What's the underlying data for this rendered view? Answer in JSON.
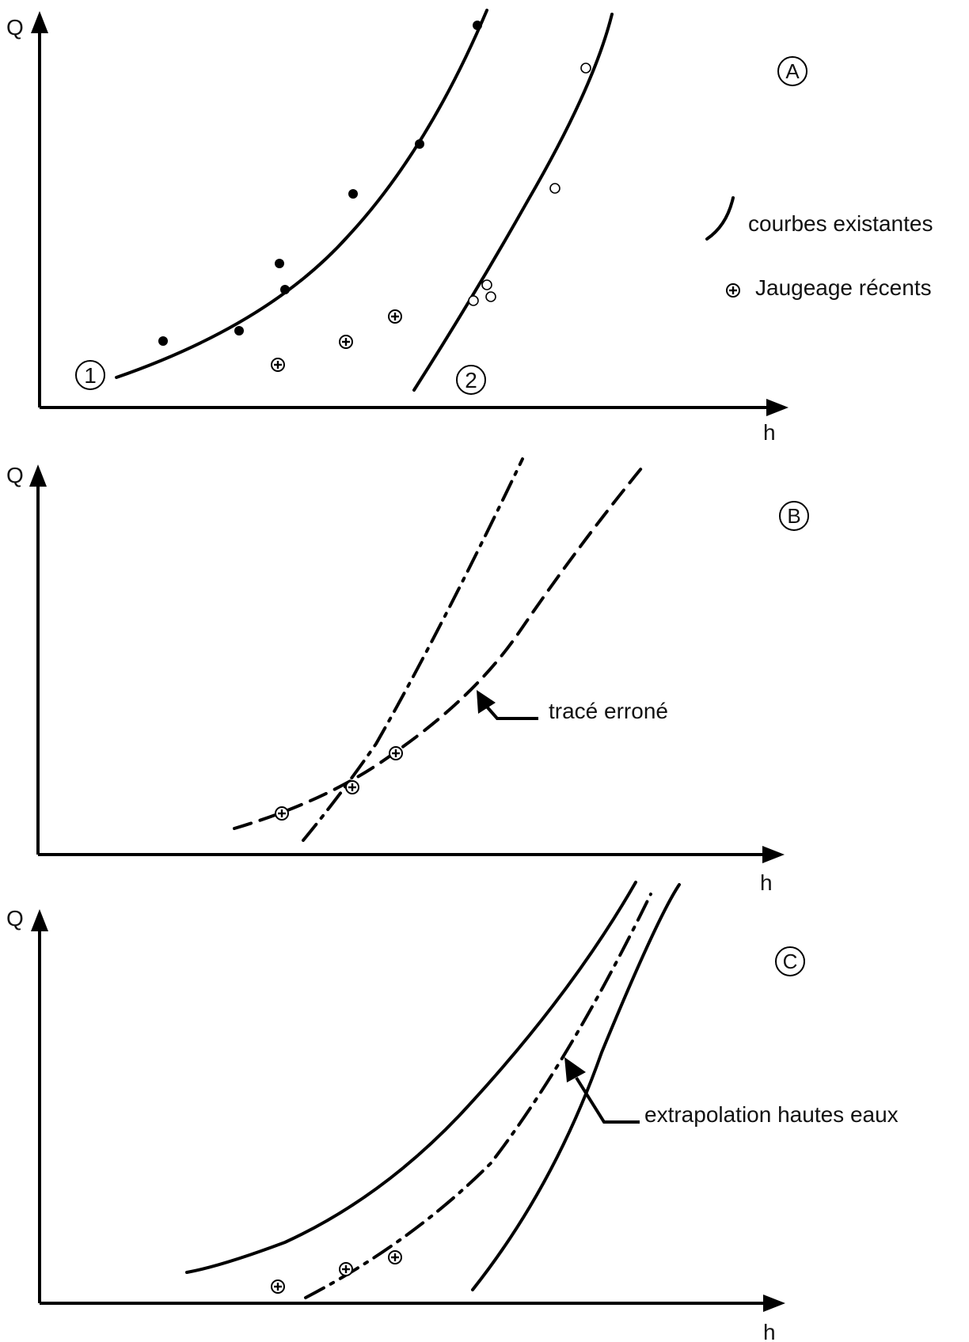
{
  "labels": {
    "q_axis": "Q",
    "h_axis": "h"
  },
  "panel_a": {
    "badge": "A",
    "curve1_number": "1",
    "curve2_number": "2",
    "legend_existing": "courbes existantes",
    "legend_recent": "Jaugeage récents"
  },
  "panel_b": {
    "badge": "B",
    "annotation": "tracé erroné"
  },
  "panel_c": {
    "badge": "C",
    "annotation": "extrapolation hautes eaux"
  },
  "colors": {
    "ink": "#000000",
    "background": "#ffffff"
  },
  "icons": {
    "recent_gauging_marker": "plus-in-circle",
    "old_gauging_curve1_marker": "filled-dot",
    "old_gauging_curve2_marker": "open-dot"
  }
}
